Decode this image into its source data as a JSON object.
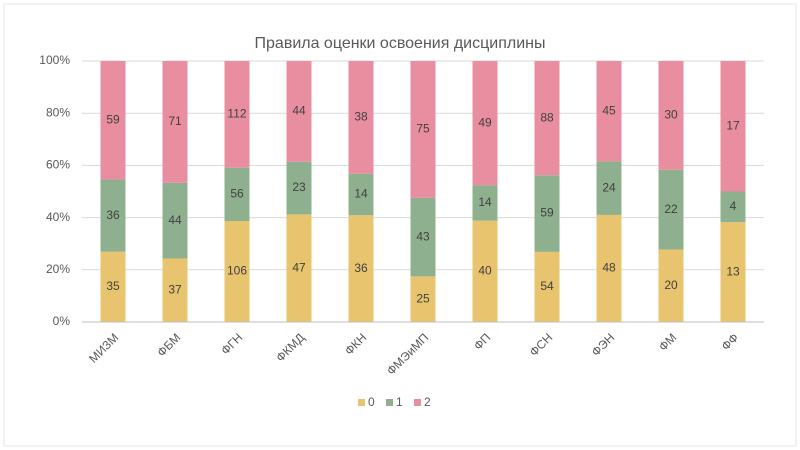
{
  "chart_data": {
    "type": "bar",
    "stacking": "percent",
    "title": "Правила оценки освоения дисциплины",
    "categories": [
      "МИЗМ",
      "ФБМ",
      "ФГН",
      "ФКМД",
      "ФКН",
      "ФМЭиМП",
      "ФП",
      "ФСН",
      "ФЭН",
      "ФМ",
      "ФФ"
    ],
    "series": [
      {
        "name": "0",
        "color": "#e8c46e",
        "values": [
          35,
          37,
          106,
          47,
          36,
          25,
          40,
          54,
          48,
          20,
          13
        ]
      },
      {
        "name": "1",
        "color": "#8fb08e",
        "values": [
          36,
          44,
          56,
          23,
          14,
          43,
          14,
          59,
          24,
          22,
          4
        ]
      },
      {
        "name": "2",
        "color": "#e98da0",
        "values": [
          59,
          71,
          112,
          44,
          38,
          75,
          49,
          88,
          45,
          30,
          17
        ]
      }
    ],
    "ylim": [
      0,
      100
    ],
    "yticks": [
      {
        "value": 0,
        "label": "0%"
      },
      {
        "value": 20,
        "label": "20%"
      },
      {
        "value": 40,
        "label": "40%"
      },
      {
        "value": 60,
        "label": "60%"
      },
      {
        "value": 80,
        "label": "80%"
      },
      {
        "value": 100,
        "label": "100%"
      }
    ],
    "grid": true,
    "legend": "bottom"
  }
}
